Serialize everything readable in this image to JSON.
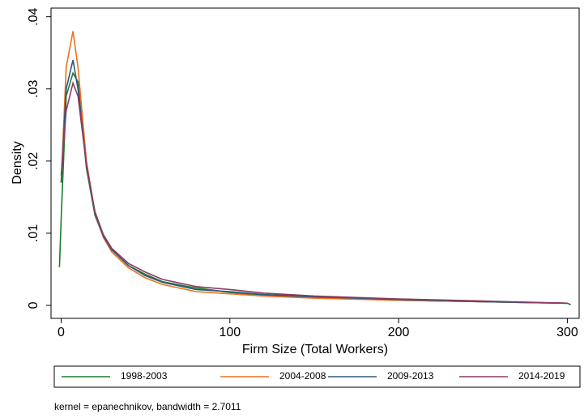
{
  "chart_data": {
    "type": "line",
    "y_label": "Density",
    "x_label": "Firm Size (Total Workers)",
    "note": "kernel = epanechnikov, bandwidth = 2.7011",
    "x": [
      -1,
      0,
      3,
      7,
      10,
      15,
      20,
      25,
      30,
      40,
      50,
      60,
      80,
      100,
      120,
      150,
      200,
      250,
      300,
      302
    ],
    "series": [
      {
        "name": "1998-2003",
        "color": "#1e7b2e",
        "values": [
          0.0053,
          0.012,
          0.029,
          0.0322,
          0.031,
          0.019,
          0.0125,
          0.0095,
          0.0077,
          0.0055,
          0.0043,
          0.0033,
          0.0024,
          0.0018,
          0.0014,
          0.0011,
          0.0007,
          0.0005,
          0.0003,
          0.0001
        ]
      },
      {
        "name": "2004-2008",
        "color": "#f07020",
        "values": [
          null,
          0.017,
          0.033,
          0.038,
          0.033,
          0.02,
          0.0128,
          0.0094,
          0.0074,
          0.0052,
          0.0038,
          0.0029,
          0.0019,
          0.0016,
          0.0013,
          0.001,
          0.0007,
          0.0005,
          0.0003,
          null
        ]
      },
      {
        "name": "2009-2013",
        "color": "#2a5a7e",
        "values": [
          null,
          0.017,
          0.03,
          0.034,
          0.03,
          0.0195,
          0.0128,
          0.0096,
          0.0077,
          0.0055,
          0.0041,
          0.0032,
          0.0022,
          0.0019,
          0.0015,
          0.0012,
          0.0008,
          0.0005,
          0.0003,
          null
        ]
      },
      {
        "name": "2014-2019",
        "color": "#8b3a62",
        "values": [
          null,
          0.018,
          0.027,
          0.0308,
          0.029,
          0.0195,
          0.013,
          0.0098,
          0.0079,
          0.0058,
          0.0046,
          0.0036,
          0.0026,
          0.0022,
          0.0017,
          0.0013,
          0.0009,
          0.0006,
          0.0003,
          null
        ]
      }
    ],
    "xlim": [
      -6,
      307
    ],
    "xticks": [
      0,
      100,
      200,
      300
    ],
    "ylim": [
      -0.0018,
      0.0412
    ],
    "yticks": [
      0,
      {
        "value": 0.01,
        "label": ".01"
      },
      {
        "value": 0.02,
        "label": ".02"
      },
      {
        "value": 0.03,
        "label": ".03"
      },
      {
        "value": 0.04,
        "label": ".04"
      }
    ]
  }
}
